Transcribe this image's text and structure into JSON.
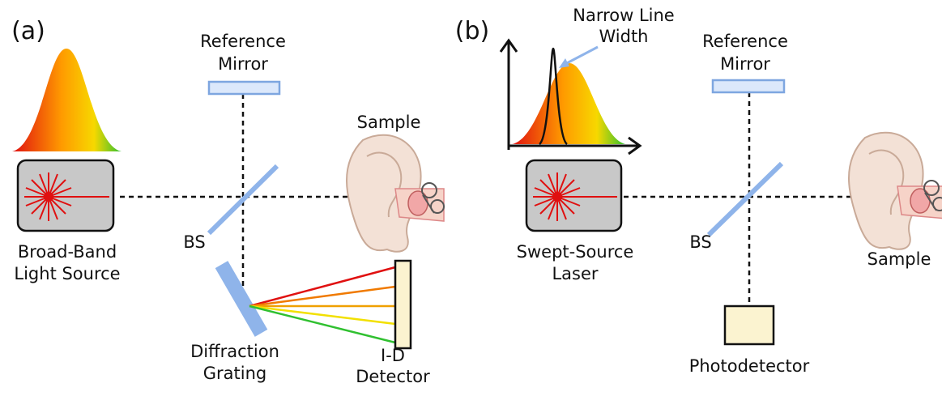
{
  "panel_a": {
    "label": "(a)",
    "reference_mirror": [
      "Reference",
      "Mirror"
    ],
    "sample": "Sample",
    "light_source": [
      "Broad-Band",
      "Light Source"
    ],
    "beam_splitter": "BS",
    "grating": [
      "Diffraction",
      "Grating"
    ],
    "detector": [
      "I-D",
      "Detector"
    ]
  },
  "panel_b": {
    "label": "(b)",
    "annotation": [
      "Narrow Line",
      "Width"
    ],
    "reference_mirror": [
      "Reference",
      "Mirror"
    ],
    "beam_splitter": "BS",
    "light_source": [
      "Swept-Source",
      "Laser"
    ],
    "sample": "Sample",
    "detector": "Photodetector"
  }
}
